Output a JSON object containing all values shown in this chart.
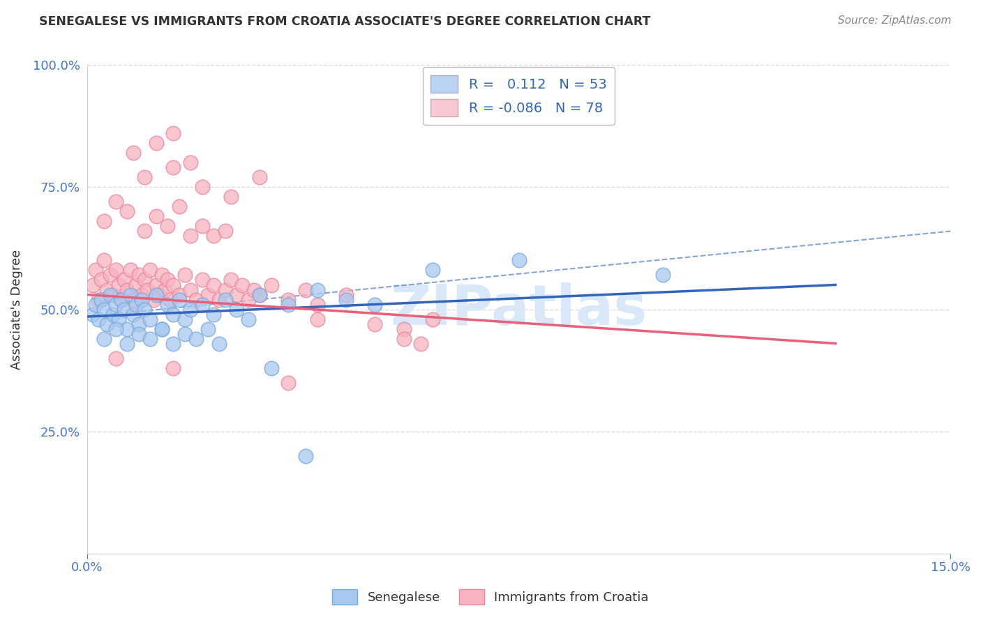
{
  "title": "SENEGALESE VS IMMIGRANTS FROM CROATIA ASSOCIATE'S DEGREE CORRELATION CHART",
  "source_text": "Source: ZipAtlas.com",
  "ylabel": "Associate's Degree",
  "xlabel": "",
  "x_min": 0.0,
  "x_max": 15.0,
  "y_min": 0.0,
  "y_max": 100.0,
  "x_tick_labels": [
    "0.0%",
    "15.0%"
  ],
  "y_tick_labels": [
    "",
    "25.0%",
    "50.0%",
    "75.0%",
    "100.0%"
  ],
  "series1_name": "Senegalese",
  "series1_color": "#a8c8f0",
  "series1_edge_color": "#7aaad8",
  "series1_R": 0.112,
  "series1_N": 53,
  "series1_line_color": "#3366bb",
  "series2_name": "Immigrants from Croatia",
  "series2_color": "#f8b4c0",
  "series2_edge_color": "#e888a0",
  "series2_R": -0.086,
  "series2_N": 78,
  "series2_line_color": "#e8607a",
  "legend_box_color1": "#b8d4f0",
  "legend_box_color2": "#f8c8d4",
  "title_color": "#333333",
  "source_color": "#888888",
  "axis_label_color": "#333333",
  "tick_color": "#4477cc",
  "grid_color": "#dddddd",
  "background_color": "#ffffff",
  "senegalese_x": [
    0.1,
    0.15,
    0.2,
    0.25,
    0.3,
    0.35,
    0.4,
    0.45,
    0.5,
    0.55,
    0.6,
    0.65,
    0.7,
    0.75,
    0.8,
    0.85,
    0.9,
    0.95,
    1.0,
    1.1,
    1.2,
    1.3,
    1.4,
    1.5,
    1.6,
    1.7,
    1.8,
    2.0,
    2.2,
    2.4,
    2.6,
    2.8,
    3.0,
    3.5,
    4.0,
    4.5,
    5.0,
    6.0,
    7.5,
    10.0,
    0.3,
    0.5,
    0.7,
    0.9,
    1.1,
    1.3,
    1.5,
    1.7,
    1.9,
    2.1,
    2.3,
    3.2,
    3.8
  ],
  "senegalese_y": [
    49.0,
    51.0,
    48.0,
    52.0,
    50.0,
    47.0,
    53.0,
    49.0,
    51.0,
    48.0,
    52.0,
    50.0,
    46.0,
    53.0,
    49.0,
    51.0,
    47.0,
    52.0,
    50.0,
    48.0,
    53.0,
    46.0,
    51.0,
    49.0,
    52.0,
    48.0,
    50.0,
    51.0,
    49.0,
    52.0,
    50.0,
    48.0,
    53.0,
    51.0,
    54.0,
    52.0,
    51.0,
    58.0,
    60.0,
    57.0,
    44.0,
    46.0,
    43.0,
    45.0,
    44.0,
    46.0,
    43.0,
    45.0,
    44.0,
    46.0,
    43.0,
    38.0,
    20.0
  ],
  "croatia_x": [
    0.1,
    0.15,
    0.2,
    0.25,
    0.3,
    0.35,
    0.4,
    0.45,
    0.5,
    0.55,
    0.6,
    0.65,
    0.7,
    0.75,
    0.8,
    0.85,
    0.9,
    0.95,
    1.0,
    1.05,
    1.1,
    1.15,
    1.2,
    1.25,
    1.3,
    1.35,
    1.4,
    1.45,
    1.5,
    1.6,
    1.7,
    1.8,
    1.9,
    2.0,
    2.1,
    2.2,
    2.3,
    2.4,
    2.5,
    2.6,
    2.7,
    2.8,
    2.9,
    3.0,
    3.2,
    3.5,
    3.8,
    4.0,
    4.5,
    5.0,
    5.5,
    6.0,
    0.3,
    0.5,
    0.7,
    1.0,
    1.2,
    1.4,
    1.6,
    1.8,
    2.0,
    2.2,
    2.4,
    1.0,
    1.5,
    2.0,
    2.5,
    3.0,
    0.8,
    1.2,
    1.5,
    1.8,
    4.0,
    5.5,
    5.8,
    0.5,
    1.5,
    3.5
  ],
  "croatia_y": [
    55.0,
    58.0,
    52.0,
    56.0,
    60.0,
    54.0,
    57.0,
    53.0,
    58.0,
    55.0,
    52.0,
    56.0,
    54.0,
    58.0,
    52.0,
    55.0,
    57.0,
    53.0,
    56.0,
    54.0,
    58.0,
    52.0,
    55.0,
    53.0,
    57.0,
    54.0,
    56.0,
    52.0,
    55.0,
    53.0,
    57.0,
    54.0,
    52.0,
    56.0,
    53.0,
    55.0,
    52.0,
    54.0,
    56.0,
    53.0,
    55.0,
    52.0,
    54.0,
    53.0,
    55.0,
    52.0,
    54.0,
    51.0,
    53.0,
    47.0,
    46.0,
    48.0,
    68.0,
    72.0,
    70.0,
    66.0,
    69.0,
    67.0,
    71.0,
    65.0,
    67.0,
    65.0,
    66.0,
    77.0,
    79.0,
    75.0,
    73.0,
    77.0,
    82.0,
    84.0,
    86.0,
    80.0,
    48.0,
    44.0,
    43.0,
    40.0,
    38.0,
    35.0
  ],
  "senegalese_line_x0": 0.0,
  "senegalese_line_y0": 48.5,
  "senegalese_line_x1": 13.0,
  "senegalese_line_y1": 55.0,
  "croatia_line_x0": 0.0,
  "croatia_line_y0": 53.0,
  "croatia_line_x1": 13.0,
  "croatia_line_y1": 43.0,
  "dash_line_x0": 0.0,
  "dash_line_y0": 48.5,
  "dash_line_x1": 15.0,
  "dash_line_y1": 66.0
}
